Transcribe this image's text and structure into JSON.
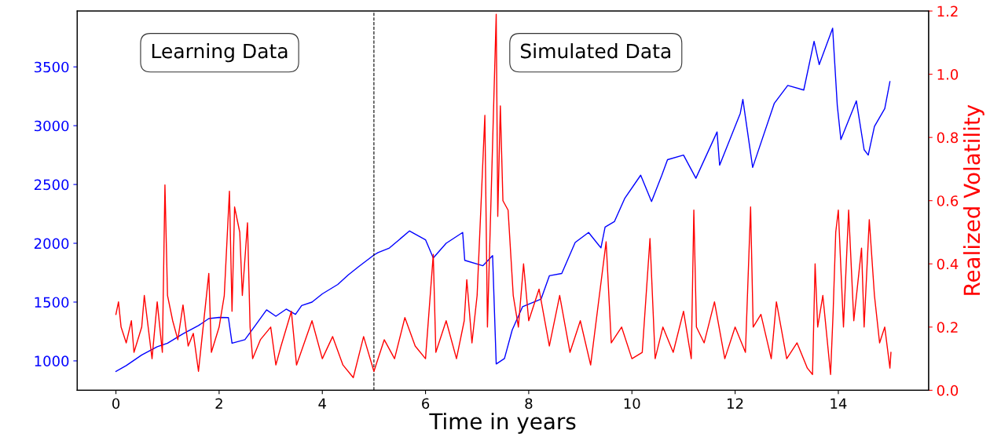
{
  "chart_data": {
    "type": "line",
    "xlabel": "Time in years",
    "y2label": "Realized Volatility",
    "annotations": [
      "Learning Data",
      "Simulated Data"
    ],
    "xlim": [
      -0.75,
      15.75
    ],
    "xticks": [
      0,
      2,
      4,
      6,
      8,
      10,
      12,
      14
    ],
    "ylim": [
      750,
      3975
    ],
    "yticks": [
      1000,
      1500,
      2000,
      2500,
      3000,
      3500
    ],
    "y2lim": [
      0,
      1.2
    ],
    "y2ticks": [
      {
        "value": 0,
        "label": "0.0"
      },
      {
        "value": 0.2,
        "label": "0.2"
      },
      {
        "value": 0.4,
        "label": "0.4"
      },
      {
        "value": 0.6,
        "label": "0.6"
      },
      {
        "value": 0.8,
        "label": "0.8"
      },
      {
        "value": 1.0,
        "label": "1.0"
      },
      {
        "value": 1.2,
        "label": "1.2"
      }
    ],
    "ref_lines": [
      {
        "axis": "x",
        "value": 5,
        "label": null,
        "color": "#000000",
        "line_style": "dashed"
      }
    ],
    "grid": false,
    "legend": false,
    "marker": "none",
    "line_style": "solid",
    "series": [
      {
        "color": "#0000ff",
        "axis": "y",
        "x": [
          0,
          0.2,
          0.5,
          0.8,
          1.0,
          1.3,
          1.6,
          1.8,
          2.0,
          2.18,
          2.25,
          2.5,
          2.7,
          2.92,
          3.1,
          3.3,
          3.48,
          3.6,
          3.8,
          4.0,
          4.3,
          4.5,
          4.7,
          5.0,
          5.08,
          5.3,
          5.69,
          6.0,
          6.15,
          6.4,
          6.72,
          6.76,
          7.11,
          7.3,
          7.37,
          7.53,
          7.68,
          7.88,
          8.24,
          8.4,
          8.64,
          8.9,
          9.16,
          9.4,
          9.48,
          9.66,
          9.86,
          10.17,
          10.38,
          10.58,
          10.69,
          11.0,
          11.24,
          11.65,
          11.7,
          12.1,
          12.15,
          12.34,
          12.76,
          13.02,
          13.33,
          13.53,
          13.63,
          13.89,
          13.98,
          14.05,
          14.35,
          14.5,
          14.58,
          14.7,
          14.9,
          15.0
        ],
        "values": [
          910,
          960,
          1050,
          1120,
          1150,
          1230,
          1300,
          1360,
          1370,
          1368,
          1150,
          1180,
          1300,
          1434,
          1380,
          1440,
          1395,
          1470,
          1500,
          1570,
          1650,
          1730,
          1800,
          1900,
          1921,
          1960,
          2105,
          2030,
          1875,
          2000,
          2092,
          1855,
          1809,
          1895,
          974,
          1020,
          1263,
          1460,
          1526,
          1724,
          1743,
          2007,
          2092,
          1961,
          2138,
          2184,
          2381,
          2579,
          2355,
          2579,
          2711,
          2750,
          2553,
          2947,
          2664,
          3105,
          3224,
          2645,
          3191,
          3342,
          3303,
          3717,
          3520,
          3829,
          3171,
          2882,
          3211,
          2796,
          2750,
          2993,
          3145,
          3375
        ]
      },
      {
        "color": "#ff0000",
        "axis": "y2",
        "x": [
          0,
          0.05,
          0.1,
          0.2,
          0.3,
          0.35,
          0.5,
          0.55,
          0.7,
          0.8,
          0.9,
          0.95,
          1.0,
          1.1,
          1.2,
          1.3,
          1.4,
          1.5,
          1.6,
          1.8,
          1.85,
          2.0,
          2.1,
          2.2,
          2.25,
          2.3,
          2.4,
          2.45,
          2.55,
          2.6,
          2.65,
          2.8,
          3.0,
          3.1,
          3.2,
          3.4,
          3.5,
          3.8,
          4.0,
          4.2,
          4.4,
          4.6,
          4.8,
          5.0,
          5.2,
          5.4,
          5.6,
          5.8,
          6.0,
          6.15,
          6.2,
          6.4,
          6.6,
          6.75,
          6.8,
          6.9,
          7.0,
          7.15,
          7.2,
          7.3,
          7.37,
          7.4,
          7.45,
          7.5,
          7.6,
          7.7,
          7.8,
          7.9,
          8.0,
          8.2,
          8.4,
          8.6,
          8.8,
          9.0,
          9.2,
          9.5,
          9.6,
          9.8,
          10.0,
          10.2,
          10.35,
          10.45,
          10.6,
          10.8,
          11.0,
          11.15,
          11.2,
          11.25,
          11.4,
          11.6,
          11.8,
          12.0,
          12.2,
          12.3,
          12.35,
          12.5,
          12.7,
          12.8,
          13.0,
          13.2,
          13.4,
          13.5,
          13.55,
          13.6,
          13.7,
          13.85,
          13.9,
          13.95,
          14.0,
          14.1,
          14.2,
          14.3,
          14.45,
          14.5,
          14.6,
          14.7,
          14.8,
          14.9,
          15.0,
          15.02
        ],
        "values": [
          0.24,
          0.28,
          0.2,
          0.15,
          0.22,
          0.12,
          0.2,
          0.3,
          0.1,
          0.28,
          0.12,
          0.65,
          0.3,
          0.22,
          0.16,
          0.27,
          0.14,
          0.18,
          0.06,
          0.37,
          0.12,
          0.2,
          0.3,
          0.63,
          0.25,
          0.58,
          0.5,
          0.3,
          0.53,
          0.2,
          0.1,
          0.16,
          0.2,
          0.08,
          0.14,
          0.25,
          0.08,
          0.22,
          0.1,
          0.17,
          0.08,
          0.04,
          0.17,
          0.06,
          0.16,
          0.1,
          0.23,
          0.14,
          0.1,
          0.43,
          0.12,
          0.22,
          0.1,
          0.22,
          0.35,
          0.15,
          0.3,
          0.87,
          0.2,
          0.78,
          1.19,
          0.55,
          0.9,
          0.6,
          0.57,
          0.3,
          0.2,
          0.4,
          0.22,
          0.32,
          0.14,
          0.3,
          0.12,
          0.22,
          0.08,
          0.47,
          0.15,
          0.2,
          0.1,
          0.12,
          0.48,
          0.1,
          0.2,
          0.12,
          0.25,
          0.1,
          0.57,
          0.2,
          0.15,
          0.28,
          0.1,
          0.2,
          0.12,
          0.58,
          0.2,
          0.24,
          0.1,
          0.28,
          0.1,
          0.15,
          0.07,
          0.05,
          0.4,
          0.2,
          0.3,
          0.05,
          0.25,
          0.5,
          0.57,
          0.2,
          0.57,
          0.22,
          0.45,
          0.2,
          0.54,
          0.3,
          0.15,
          0.2,
          0.07,
          0.12
        ]
      }
    ]
  }
}
